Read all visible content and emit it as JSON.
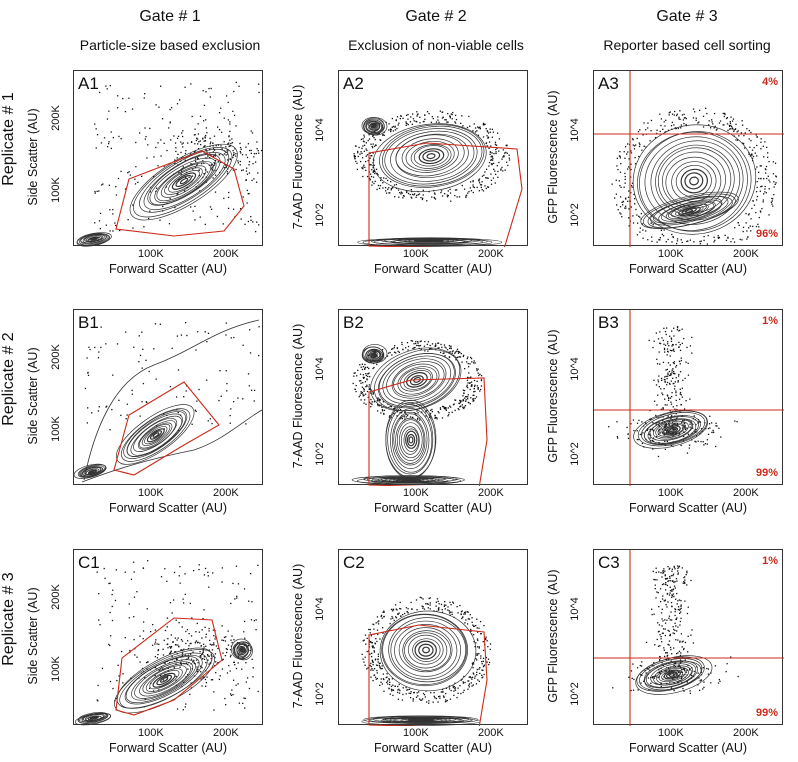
{
  "columns": [
    {
      "gate": "Gate # 1",
      "subtitle": "Particle-size based exclusion"
    },
    {
      "gate": "Gate # 2",
      "subtitle": "Exclusion of non-viable cells"
    },
    {
      "gate": "Gate # 3",
      "subtitle": "Reporter based cell sorting"
    }
  ],
  "rows": [
    "Replicate # 1",
    "Replicate # 2",
    "Replicate # 3"
  ],
  "colors": {
    "gate": "#cc2a1a",
    "contour": "#333333",
    "frame": "#333333"
  },
  "chart_data": [
    {
      "id": "A1",
      "type": "scatter",
      "xlabel": "Forward Scatter (AU)",
      "ylabel": "Side Scatter (AU)",
      "xticks": [
        "100K",
        "200K"
      ],
      "yticks": [
        "100K",
        "200K"
      ],
      "xlim": [
        0,
        262
      ],
      "ylim": [
        0,
        262
      ]
    },
    {
      "id": "A2",
      "type": "scatter",
      "xlabel": "Forward Scatter (AU)",
      "ylabel": "7-AAD Fluorescence  (AU)",
      "xticks": [
        "100K",
        "200K"
      ],
      "yticks": [
        "10^2",
        "10^4"
      ],
      "xlim": [
        0,
        262
      ]
    },
    {
      "id": "A3",
      "type": "scatter",
      "xlabel": "Forward Scatter (AU)",
      "ylabel": "GFP Fluorescence  (AU)",
      "xticks": [
        "100K",
        "200K"
      ],
      "yticks": [
        "10^2",
        "10^4"
      ],
      "xlim": [
        0,
        262
      ],
      "quadrants": {
        "upper_right": "4%",
        "lower_right": "96%"
      }
    },
    {
      "id": "B1",
      "type": "scatter",
      "xlabel": "Forward Scatter (AU)",
      "ylabel": "Side Scatter (AU)",
      "xticks": [
        "100K",
        "200K"
      ],
      "yticks": [
        "100K",
        "200K"
      ],
      "xlim": [
        0,
        262
      ],
      "ylim": [
        0,
        262
      ]
    },
    {
      "id": "B2",
      "type": "scatter",
      "xlabel": "Forward Scatter (AU)",
      "ylabel": "7-AAD Fluorescence  (AU)",
      "xticks": [
        "100K",
        "200K"
      ],
      "yticks": [
        "10^2",
        "10^4"
      ],
      "xlim": [
        0,
        262
      ]
    },
    {
      "id": "B3",
      "type": "scatter",
      "xlabel": "Forward Scatter (AU)",
      "ylabel": "GFP Fluorescence  (AU)",
      "xticks": [
        "100K",
        "200K"
      ],
      "yticks": [
        "10^2",
        "10^4"
      ],
      "xlim": [
        0,
        262
      ],
      "quadrants": {
        "upper_right": "1%",
        "lower_right": "99%"
      }
    },
    {
      "id": "C1",
      "type": "scatter",
      "xlabel": "Forward Scatter (AU)",
      "ylabel": "Side Scatter (AU)",
      "xticks": [
        "100K",
        "200K"
      ],
      "yticks": [
        "100K",
        "200K"
      ],
      "xlim": [
        0,
        262
      ],
      "ylim": [
        0,
        262
      ]
    },
    {
      "id": "C2",
      "type": "scatter",
      "xlabel": "Forward Scatter (AU)",
      "ylabel": "7-AAD Fluorescence  (AU)",
      "xticks": [
        "100K",
        "200K"
      ],
      "yticks": [
        "10^2",
        "10^4"
      ],
      "xlim": [
        0,
        262
      ]
    },
    {
      "id": "C3",
      "type": "scatter",
      "xlabel": "Forward Scatter (AU)",
      "ylabel": "GFP Fluorescence  (AU)",
      "xticks": [
        "100K",
        "200K"
      ],
      "yticks": [
        "10^2",
        "10^4"
      ],
      "xlim": [
        0,
        262
      ],
      "quadrants": {
        "upper_right": "1%",
        "lower_right": "99%"
      }
    }
  ]
}
